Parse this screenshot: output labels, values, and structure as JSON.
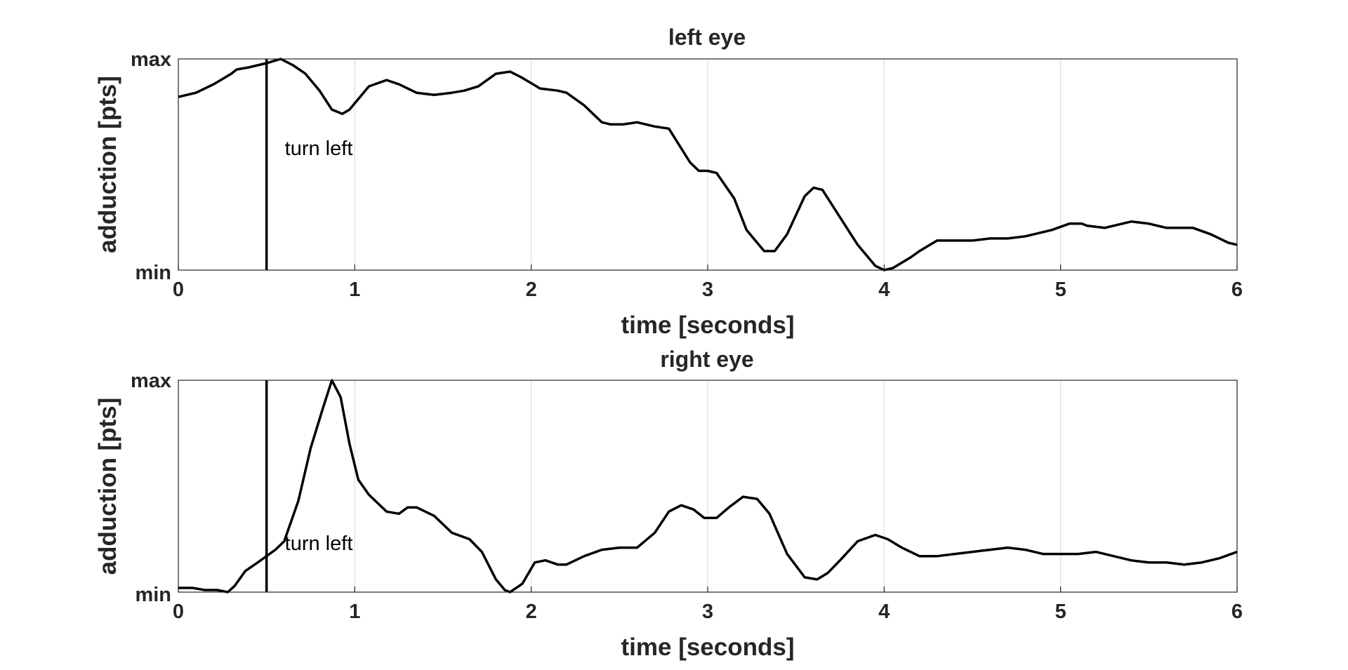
{
  "colors": {
    "line": "#000000",
    "grid": "#dfdfdf",
    "axes": "#262626",
    "background": "#ffffff"
  },
  "chart_data": [
    {
      "type": "line",
      "title": "left eye",
      "xlabel": "time [seconds]",
      "ylabel": "adduction [pts]",
      "xlim": [
        0,
        6
      ],
      "ylim": [
        0,
        1
      ],
      "grid": "x-only",
      "x_ticks": [
        "0",
        "1",
        "2",
        "3",
        "4",
        "5",
        "6"
      ],
      "y_ticks": [
        "min",
        "max"
      ],
      "event": {
        "x": 0.5,
        "label": "turn left"
      },
      "series": [
        {
          "x": [
            0,
            0.1,
            0.2,
            0.3,
            0.33,
            0.4,
            0.5,
            0.58,
            0.65,
            0.72,
            0.8,
            0.87,
            0.93,
            0.97,
            1.08,
            1.18,
            1.25,
            1.35,
            1.45,
            1.55,
            1.62,
            1.7,
            1.8,
            1.88,
            1.95,
            2.05,
            2.15,
            2.2,
            2.3,
            2.4,
            2.45,
            2.52,
            2.6,
            2.7,
            2.78,
            2.9,
            2.95,
            3.0,
            3.05,
            3.15,
            3.22,
            3.32,
            3.38,
            3.45,
            3.55,
            3.6,
            3.65,
            3.75,
            3.85,
            3.95,
            4.0,
            4.05,
            4.15,
            4.2,
            4.3,
            4.35,
            4.45,
            4.5,
            4.6,
            4.65,
            4.7,
            4.8,
            4.85,
            4.9,
            4.95,
            5.05,
            5.12,
            5.15,
            5.25,
            5.35,
            5.4,
            5.5,
            5.6,
            5.65,
            5.75,
            5.85,
            5.95,
            6.0
          ],
          "y": [
            0.82,
            0.84,
            0.88,
            0.93,
            0.95,
            0.96,
            0.98,
            1.0,
            0.97,
            0.93,
            0.85,
            0.76,
            0.74,
            0.76,
            0.87,
            0.9,
            0.88,
            0.84,
            0.83,
            0.84,
            0.85,
            0.87,
            0.93,
            0.94,
            0.91,
            0.86,
            0.85,
            0.84,
            0.78,
            0.7,
            0.69,
            0.69,
            0.7,
            0.68,
            0.67,
            0.51,
            0.47,
            0.47,
            0.46,
            0.34,
            0.19,
            0.09,
            0.09,
            0.17,
            0.35,
            0.39,
            0.38,
            0.25,
            0.12,
            0.02,
            0.0,
            0.01,
            0.06,
            0.09,
            0.14,
            0.14,
            0.14,
            0.14,
            0.15,
            0.15,
            0.15,
            0.16,
            0.17,
            0.18,
            0.19,
            0.22,
            0.22,
            0.21,
            0.2,
            0.22,
            0.23,
            0.22,
            0.2,
            0.2,
            0.2,
            0.17,
            0.13,
            0.12
          ]
        }
      ]
    },
    {
      "type": "line",
      "title": "right eye",
      "xlabel": "time [seconds]",
      "ylabel": "adduction [pts]",
      "xlim": [
        0,
        6
      ],
      "ylim": [
        0,
        1
      ],
      "grid": "x-only",
      "x_ticks": [
        "0",
        "1",
        "2",
        "3",
        "4",
        "5",
        "6"
      ],
      "y_ticks": [
        "min",
        "max"
      ],
      "event": {
        "x": 0.5,
        "label": "turn left"
      },
      "series": [
        {
          "x": [
            0,
            0.08,
            0.15,
            0.22,
            0.28,
            0.32,
            0.38,
            0.45,
            0.5,
            0.55,
            0.6,
            0.68,
            0.75,
            0.82,
            0.87,
            0.92,
            0.97,
            1.02,
            1.08,
            1.18,
            1.25,
            1.3,
            1.35,
            1.45,
            1.55,
            1.65,
            1.72,
            1.8,
            1.85,
            1.88,
            1.95,
            2.02,
            2.08,
            2.15,
            2.2,
            2.3,
            2.4,
            2.5,
            2.6,
            2.7,
            2.78,
            2.85,
            2.92,
            2.98,
            3.05,
            3.12,
            3.2,
            3.28,
            3.35,
            3.45,
            3.55,
            3.62,
            3.68,
            3.75,
            3.85,
            3.95,
            4.02,
            4.1,
            4.2,
            4.3,
            4.4,
            4.5,
            4.6,
            4.7,
            4.8,
            4.9,
            5.0,
            5.1,
            5.2,
            5.3,
            5.4,
            5.5,
            5.6,
            5.7,
            5.8,
            5.9,
            6.0
          ],
          "y": [
            0.02,
            0.02,
            0.01,
            0.01,
            0.0,
            0.03,
            0.1,
            0.14,
            0.17,
            0.2,
            0.24,
            0.43,
            0.68,
            0.87,
            1.0,
            0.92,
            0.7,
            0.53,
            0.46,
            0.38,
            0.37,
            0.4,
            0.4,
            0.36,
            0.28,
            0.25,
            0.19,
            0.06,
            0.01,
            0.0,
            0.04,
            0.14,
            0.15,
            0.13,
            0.13,
            0.17,
            0.2,
            0.21,
            0.21,
            0.28,
            0.38,
            0.41,
            0.39,
            0.35,
            0.35,
            0.4,
            0.45,
            0.44,
            0.37,
            0.18,
            0.07,
            0.06,
            0.09,
            0.15,
            0.24,
            0.27,
            0.25,
            0.21,
            0.17,
            0.17,
            0.18,
            0.19,
            0.2,
            0.21,
            0.2,
            0.18,
            0.18,
            0.18,
            0.19,
            0.17,
            0.15,
            0.14,
            0.14,
            0.13,
            0.14,
            0.16,
            0.19
          ]
        }
      ]
    }
  ]
}
